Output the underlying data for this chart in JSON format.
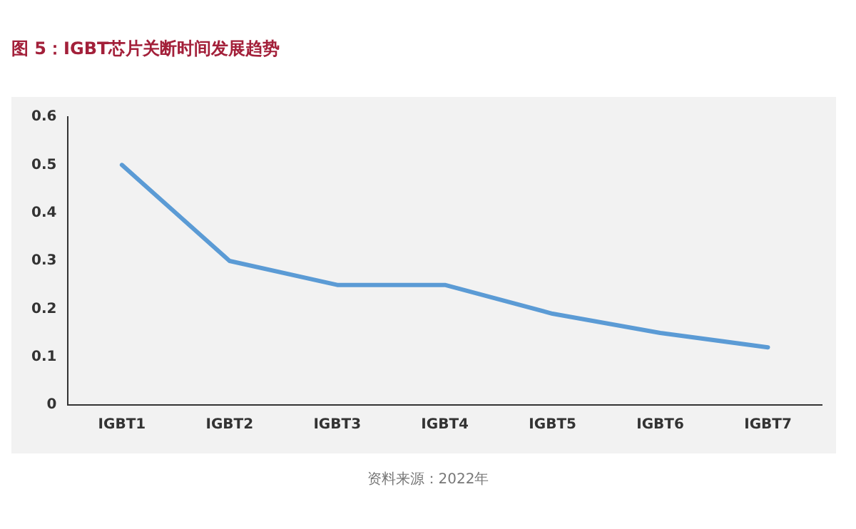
{
  "chart_data": {
    "type": "line",
    "title": "图 5：IGBT芯片关断时间发展趋势",
    "categories": [
      "IGBT1",
      "IGBT2",
      "IGBT3",
      "IGBT4",
      "IGBT5",
      "IGBT6",
      "IGBT7"
    ],
    "series": [
      {
        "color": "#5b9bd5",
        "values": [
          0.5,
          0.3,
          0.25,
          0.25,
          0.19,
          0.15,
          0.12
        ]
      }
    ],
    "ylim": [
      0,
      0.6
    ],
    "yticks": [
      0,
      0.1,
      0.2,
      0.3,
      0.4,
      0.5,
      0.6
    ],
    "grid": false,
    "legend": false,
    "marker": "none",
    "line_style": "solid",
    "annotations": [
      "资料来源：2022年"
    ]
  }
}
